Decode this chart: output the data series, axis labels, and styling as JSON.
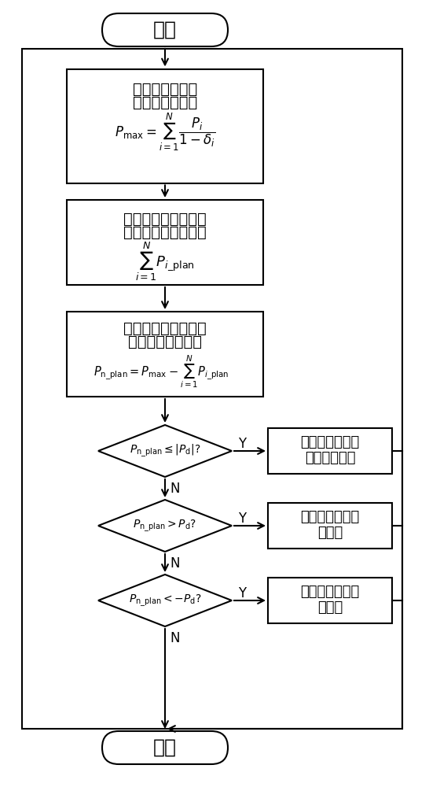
{
  "title": "开始",
  "end_label": "结束",
  "box1_line1": "计算电网允许最",
  "box1_line2": "大光伏发电出力",
  "box2_line1": "计算所有光伏电站期",
  "box2_line2": "望出力与计划值之和",
  "box3_line1": "计算需要调整的光伏",
  "box3_line2": "发电计划出力总量",
  "right1_line1": "不需要调整光伏",
  "right1_line2": "电站出力计划",
  "right2_line1": "增加光伏电站出",
  "right2_line2": "力计划",
  "right3_line1": "减少光伏电站出",
  "right3_line2": "力计划",
  "yes_label": "Y",
  "no_label": "N",
  "bg_color": "#ffffff",
  "text_color": "#000000"
}
